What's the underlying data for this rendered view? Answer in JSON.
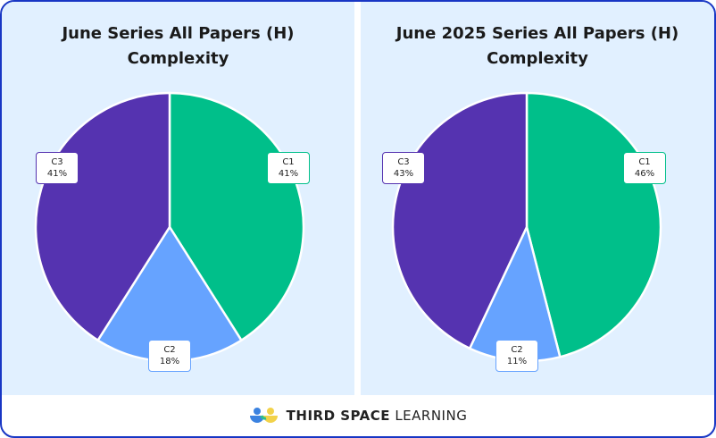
{
  "chart_data": [
    {
      "type": "pie",
      "title": "June Series All Papers (H) Complexity",
      "title_lines": [
        "June Series All Papers (H)",
        "Complexity"
      ],
      "categories": [
        "C1",
        "C2",
        "C3"
      ],
      "values": [
        41,
        18,
        41
      ],
      "value_labels": [
        "41%",
        "18%",
        "41%"
      ],
      "colors": [
        "#00bf8a",
        "#66a3ff",
        "#5533b0"
      ]
    },
    {
      "type": "pie",
      "title": "June 2025 Series All Papers (H) Complexity",
      "title_lines": [
        "June 2025 Series All Papers (H)",
        "Complexity"
      ],
      "categories": [
        "C1",
        "C2",
        "C3"
      ],
      "values": [
        46,
        11,
        43
      ],
      "value_labels": [
        "46%",
        "11%",
        "43%"
      ],
      "colors": [
        "#00bf8a",
        "#66a3ff",
        "#5533b0"
      ]
    }
  ],
  "footer": {
    "brand_bold": "THIRD SPACE",
    "brand_light": "LEARNING",
    "border_color": "#1836c4",
    "background": "#e1f0ff"
  }
}
